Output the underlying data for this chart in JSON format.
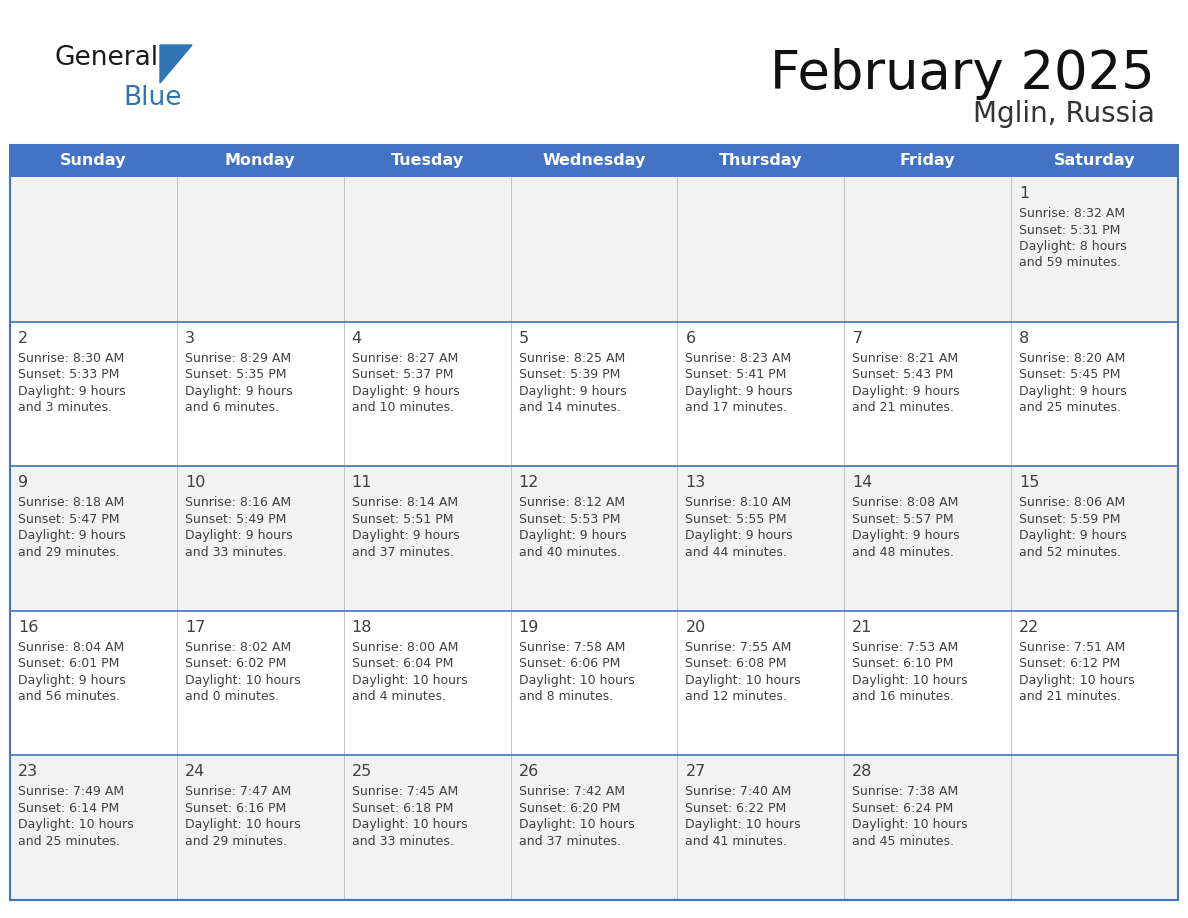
{
  "title": "February 2025",
  "subtitle": "Mglin, Russia",
  "header_bg": "#4472C4",
  "header_text_color": "#FFFFFF",
  "border_color": "#4472C4",
  "row_separator_color": "#4472C4",
  "col_separator_color": "#CCCCCC",
  "cell_bg_odd": "#F2F2F2",
  "cell_bg_even": "#FFFFFF",
  "text_color": "#404040",
  "day_number_color": "#404040",
  "logo_general_color": "#1A1A1A",
  "logo_blue_color": "#2E75B6",
  "days_of_week": [
    "Sunday",
    "Monday",
    "Tuesday",
    "Wednesday",
    "Thursday",
    "Friday",
    "Saturday"
  ],
  "calendar": [
    [
      null,
      null,
      null,
      null,
      null,
      null,
      {
        "day": 1,
        "sunrise": "8:32 AM",
        "sunset": "5:31 PM",
        "daylight_h": "8 hours",
        "daylight_m": "and 59 minutes."
      }
    ],
    [
      {
        "day": 2,
        "sunrise": "8:30 AM",
        "sunset": "5:33 PM",
        "daylight_h": "9 hours",
        "daylight_m": "and 3 minutes."
      },
      {
        "day": 3,
        "sunrise": "8:29 AM",
        "sunset": "5:35 PM",
        "daylight_h": "9 hours",
        "daylight_m": "and 6 minutes."
      },
      {
        "day": 4,
        "sunrise": "8:27 AM",
        "sunset": "5:37 PM",
        "daylight_h": "9 hours",
        "daylight_m": "and 10 minutes."
      },
      {
        "day": 5,
        "sunrise": "8:25 AM",
        "sunset": "5:39 PM",
        "daylight_h": "9 hours",
        "daylight_m": "and 14 minutes."
      },
      {
        "day": 6,
        "sunrise": "8:23 AM",
        "sunset": "5:41 PM",
        "daylight_h": "9 hours",
        "daylight_m": "and 17 minutes."
      },
      {
        "day": 7,
        "sunrise": "8:21 AM",
        "sunset": "5:43 PM",
        "daylight_h": "9 hours",
        "daylight_m": "and 21 minutes."
      },
      {
        "day": 8,
        "sunrise": "8:20 AM",
        "sunset": "5:45 PM",
        "daylight_h": "9 hours",
        "daylight_m": "and 25 minutes."
      }
    ],
    [
      {
        "day": 9,
        "sunrise": "8:18 AM",
        "sunset": "5:47 PM",
        "daylight_h": "9 hours",
        "daylight_m": "and 29 minutes."
      },
      {
        "day": 10,
        "sunrise": "8:16 AM",
        "sunset": "5:49 PM",
        "daylight_h": "9 hours",
        "daylight_m": "and 33 minutes."
      },
      {
        "day": 11,
        "sunrise": "8:14 AM",
        "sunset": "5:51 PM",
        "daylight_h": "9 hours",
        "daylight_m": "and 37 minutes."
      },
      {
        "day": 12,
        "sunrise": "8:12 AM",
        "sunset": "5:53 PM",
        "daylight_h": "9 hours",
        "daylight_m": "and 40 minutes."
      },
      {
        "day": 13,
        "sunrise": "8:10 AM",
        "sunset": "5:55 PM",
        "daylight_h": "9 hours",
        "daylight_m": "and 44 minutes."
      },
      {
        "day": 14,
        "sunrise": "8:08 AM",
        "sunset": "5:57 PM",
        "daylight_h": "9 hours",
        "daylight_m": "and 48 minutes."
      },
      {
        "day": 15,
        "sunrise": "8:06 AM",
        "sunset": "5:59 PM",
        "daylight_h": "9 hours",
        "daylight_m": "and 52 minutes."
      }
    ],
    [
      {
        "day": 16,
        "sunrise": "8:04 AM",
        "sunset": "6:01 PM",
        "daylight_h": "9 hours",
        "daylight_m": "and 56 minutes."
      },
      {
        "day": 17,
        "sunrise": "8:02 AM",
        "sunset": "6:02 PM",
        "daylight_h": "10 hours",
        "daylight_m": "and 0 minutes."
      },
      {
        "day": 18,
        "sunrise": "8:00 AM",
        "sunset": "6:04 PM",
        "daylight_h": "10 hours",
        "daylight_m": "and 4 minutes."
      },
      {
        "day": 19,
        "sunrise": "7:58 AM",
        "sunset": "6:06 PM",
        "daylight_h": "10 hours",
        "daylight_m": "and 8 minutes."
      },
      {
        "day": 20,
        "sunrise": "7:55 AM",
        "sunset": "6:08 PM",
        "daylight_h": "10 hours",
        "daylight_m": "and 12 minutes."
      },
      {
        "day": 21,
        "sunrise": "7:53 AM",
        "sunset": "6:10 PM",
        "daylight_h": "10 hours",
        "daylight_m": "and 16 minutes."
      },
      {
        "day": 22,
        "sunrise": "7:51 AM",
        "sunset": "6:12 PM",
        "daylight_h": "10 hours",
        "daylight_m": "and 21 minutes."
      }
    ],
    [
      {
        "day": 23,
        "sunrise": "7:49 AM",
        "sunset": "6:14 PM",
        "daylight_h": "10 hours",
        "daylight_m": "and 25 minutes."
      },
      {
        "day": 24,
        "sunrise": "7:47 AM",
        "sunset": "6:16 PM",
        "daylight_h": "10 hours",
        "daylight_m": "and 29 minutes."
      },
      {
        "day": 25,
        "sunrise": "7:45 AM",
        "sunset": "6:18 PM",
        "daylight_h": "10 hours",
        "daylight_m": "and 33 minutes."
      },
      {
        "day": 26,
        "sunrise": "7:42 AM",
        "sunset": "6:20 PM",
        "daylight_h": "10 hours",
        "daylight_m": "and 37 minutes."
      },
      {
        "day": 27,
        "sunrise": "7:40 AM",
        "sunset": "6:22 PM",
        "daylight_h": "10 hours",
        "daylight_m": "and 41 minutes."
      },
      {
        "day": 28,
        "sunrise": "7:38 AM",
        "sunset": "6:24 PM",
        "daylight_h": "10 hours",
        "daylight_m": "and 45 minutes."
      },
      null
    ]
  ]
}
